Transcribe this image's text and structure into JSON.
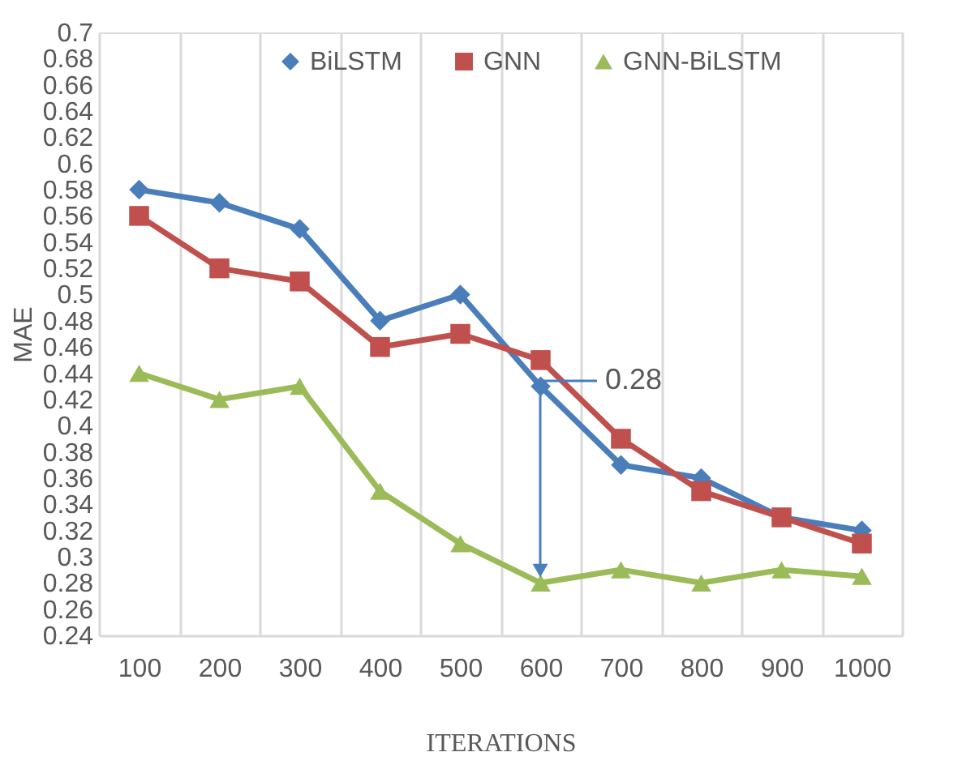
{
  "chart_data": {
    "type": "line",
    "xlabel": "ITERATIONS",
    "ylabel": "MAE",
    "categories": [
      "100",
      "200",
      "300",
      "400",
      "500",
      "600",
      "700",
      "800",
      "900",
      "1000"
    ],
    "series": [
      {
        "name": "BiLSTM",
        "color": "#4a7ebb",
        "marker": "diamond",
        "values": [
          0.58,
          0.57,
          0.55,
          0.48,
          0.5,
          0.43,
          0.37,
          0.36,
          0.33,
          0.32
        ]
      },
      {
        "name": "GNN",
        "color": "#c0504d",
        "marker": "square",
        "values": [
          0.56,
          0.52,
          0.51,
          0.46,
          0.47,
          0.45,
          0.39,
          0.35,
          0.33,
          0.31
        ]
      },
      {
        "name": "GNN-BiLSTM",
        "color": "#9bbb59",
        "marker": "triangle",
        "values": [
          0.44,
          0.42,
          0.43,
          0.35,
          0.31,
          0.28,
          0.29,
          0.28,
          0.29,
          0.285
        ]
      }
    ],
    "ylim": [
      0.24,
      0.7
    ],
    "yticks": [
      0.24,
      0.26,
      0.28,
      0.3,
      0.32,
      0.34,
      0.36,
      0.38,
      0.4,
      0.42,
      0.44,
      0.46,
      0.48,
      0.5,
      0.52,
      0.54,
      0.56,
      0.58,
      0.6,
      0.62,
      0.64,
      0.66,
      0.68,
      0.7
    ],
    "grid": "x",
    "legend": "top",
    "line_style": "solid",
    "annotations": [
      "0.28"
    ]
  }
}
